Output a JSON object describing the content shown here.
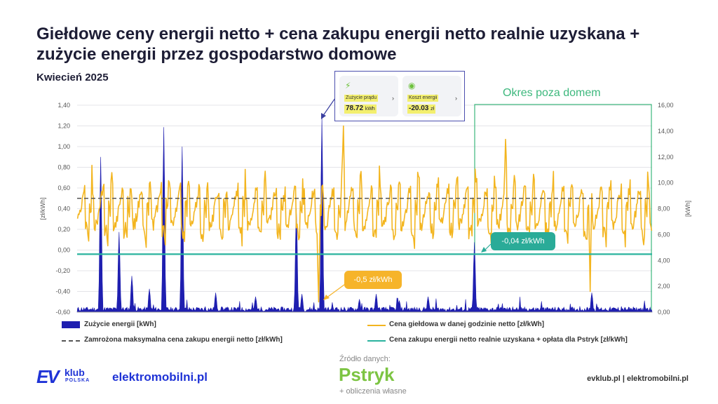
{
  "header": {
    "title": "Giełdowe ceny energii netto + cena zakupu energii netto realnie uzyskana + zużycie energii przez gospodarstwo domowe",
    "subtitle": "Kwiecień 2025"
  },
  "chart_data": {
    "type": "combo",
    "title": "Giełdowe ceny energii netto + cena zakupu energii netto realnie uzyskana + zużycie energii przez gospodarstwo domowe",
    "subtitle": "Kwiecień 2025",
    "y_left": {
      "label": "[zł/kWh]",
      "range": [
        -0.6,
        1.4
      ],
      "ticks": [
        "-0,60",
        "-0,40",
        "-0,20",
        "0,00",
        "0,20",
        "0,40",
        "0,60",
        "0,80",
        "1,00",
        "1,20",
        "1,40"
      ]
    },
    "y_right": {
      "label": "[kWh]",
      "range": [
        0,
        16
      ],
      "ticks": [
        "0,00",
        "2,00",
        "4,00",
        "6,00",
        "8,00",
        "10,00",
        "12,00",
        "14,00",
        "16,00"
      ]
    },
    "grid": true,
    "legend_placement": "bottom",
    "series": [
      {
        "name": "Zużycie energii [kWh]",
        "type": "bar",
        "axis": "right",
        "color": "#1f1fb0",
        "peaks": [
          {
            "x": 0.04,
            "value": 12.0
          },
          {
            "x": 0.072,
            "value": 6.2
          },
          {
            "x": 0.095,
            "value": 2.8
          },
          {
            "x": 0.125,
            "value": 1.8
          },
          {
            "x": 0.15,
            "value": 14.3
          },
          {
            "x": 0.182,
            "value": 12.8
          },
          {
            "x": 0.24,
            "value": 1.5
          },
          {
            "x": 0.31,
            "value": 1.2
          },
          {
            "x": 0.39,
            "value": 1.4
          },
          {
            "x": 0.38,
            "value": 8.0
          },
          {
            "x": 0.425,
            "value": 15.0
          },
          {
            "x": 0.49,
            "value": 1.0
          },
          {
            "x": 0.52,
            "value": 1.4
          },
          {
            "x": 0.56,
            "value": 0.9
          },
          {
            "x": 0.61,
            "value": 1.2
          },
          {
            "x": 0.69,
            "value": 5.4
          },
          {
            "x": 0.895,
            "value": 1.5
          }
        ]
      },
      {
        "name": "Cena giełdowa w danej godzinie netto [zł/kWh]",
        "type": "line",
        "axis": "left",
        "color": "#f3b51f",
        "notable": {
          "max": 1.2,
          "min": -0.5
        }
      },
      {
        "name": "Zamrożona maksymalna cena zakupu energii netto [zł/kWh]",
        "type": "line",
        "axis": "left",
        "color": "#555555",
        "style": "dashed",
        "value": 0.5
      },
      {
        "name": "Cena zakupu energii netto realnie uzyskana + opłata dla Pstryk [zł/kWh]",
        "type": "line",
        "axis": "left",
        "color": "#2ab39e",
        "value": -0.04
      }
    ],
    "annotations": {
      "zone_label": "Okres poza domem",
      "badge_teal": "-0,04 zł/kWh",
      "badge_orange": "-0,5 zł/kWh",
      "callout": [
        {
          "label": "Zużycie prądu",
          "value": "78.72",
          "unit": "kWh"
        },
        {
          "label": "Koszt energii",
          "value": "-20.03",
          "unit": "zł"
        }
      ]
    }
  },
  "footer": {
    "ev_mark": "EV",
    "ev_klub": "klub",
    "ev_polska": "POLSKA",
    "elektro": "elektromobilni.pl",
    "source_label": "Źródło danych:",
    "source_brand": "Pstryk",
    "own_calc": "+ obliczenia własne",
    "right_text": "evklub.pl | elektromobilni.pl"
  }
}
